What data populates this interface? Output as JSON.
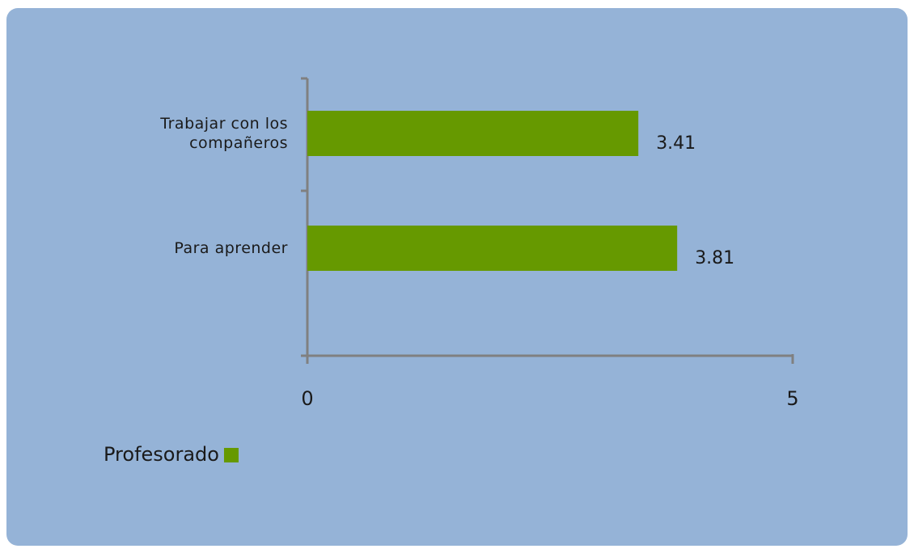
{
  "chart_data": {
    "type": "bar",
    "orientation": "horizontal",
    "categories": [
      "Trabajar con los compañeros",
      "Para aprender"
    ],
    "series": [
      {
        "name": "Profesorado",
        "color": "#669900",
        "values": [
          3.41,
          3.81
        ]
      }
    ],
    "xlim": [
      0,
      5
    ],
    "xticks": [
      0,
      5
    ],
    "legend": "bottom-left"
  }
}
